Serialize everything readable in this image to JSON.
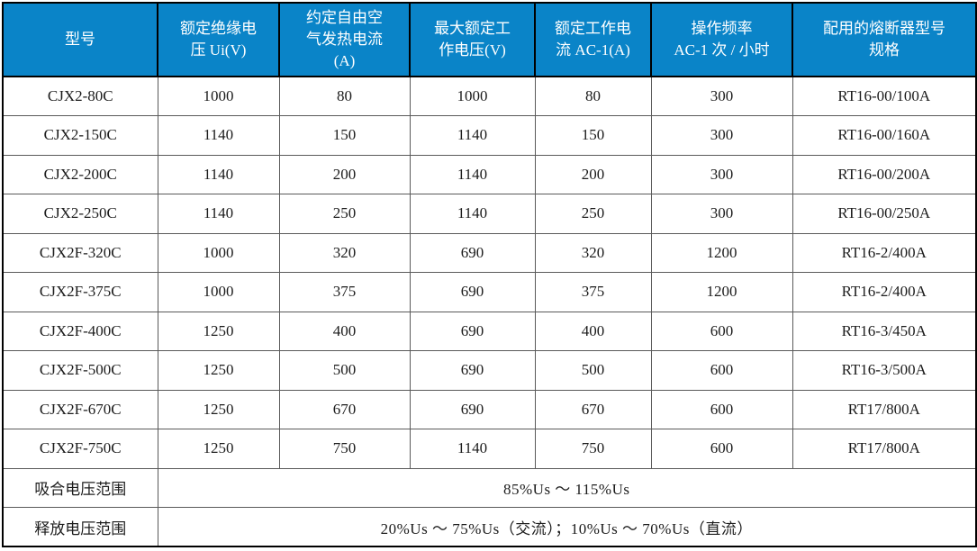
{
  "colors": {
    "header_bg": "#0a84c8",
    "header_text": "#ffffff",
    "grid": "#5a5a5a",
    "outer_border": "#000000",
    "cell_text": "#1c1c1c"
  },
  "table": {
    "columns": [
      "型号",
      "额定绝缘电\n压 Ui(V)",
      "约定自由空\n气发热电流\n(A)",
      "最大额定工\n作电压(V)",
      "额定工作电\n流 AC-1(A)",
      "操作频率\nAC-1 次 / 小时",
      "配用的熔断器型号\n规格"
    ],
    "rows": [
      [
        "CJX2-80C",
        "1000",
        "80",
        "1000",
        "80",
        "300",
        "RT16-00/100A"
      ],
      [
        "CJX2-150C",
        "1140",
        "150",
        "1140",
        "150",
        "300",
        "RT16-00/160A"
      ],
      [
        "CJX2-200C",
        "1140",
        "200",
        "1140",
        "200",
        "300",
        "RT16-00/200A"
      ],
      [
        "CJX2-250C",
        "1140",
        "250",
        "1140",
        "250",
        "300",
        "RT16-00/250A"
      ],
      [
        "CJX2F-320C",
        "1000",
        "320",
        "690",
        "320",
        "1200",
        "RT16-2/400A"
      ],
      [
        "CJX2F-375C",
        "1000",
        "375",
        "690",
        "375",
        "1200",
        "RT16-2/400A"
      ],
      [
        "CJX2F-400C",
        "1250",
        "400",
        "690",
        "400",
        "600",
        "RT16-3/450A"
      ],
      [
        "CJX2F-500C",
        "1250",
        "500",
        "690",
        "500",
        "600",
        "RT16-3/500A"
      ],
      [
        "CJX2F-670C",
        "1250",
        "670",
        "690",
        "670",
        "600",
        "RT17/800A"
      ],
      [
        "CJX2F-750C",
        "1250",
        "750",
        "1140",
        "750",
        "600",
        "RT17/800A"
      ]
    ],
    "footers": [
      {
        "label": "吸合电压范围",
        "value": "85%Us ～ 115%Us"
      },
      {
        "label": "释放电压范围",
        "value": "20%Us ～ 75%Us（交流）；10%Us ～ 70%Us（直流）"
      }
    ]
  }
}
